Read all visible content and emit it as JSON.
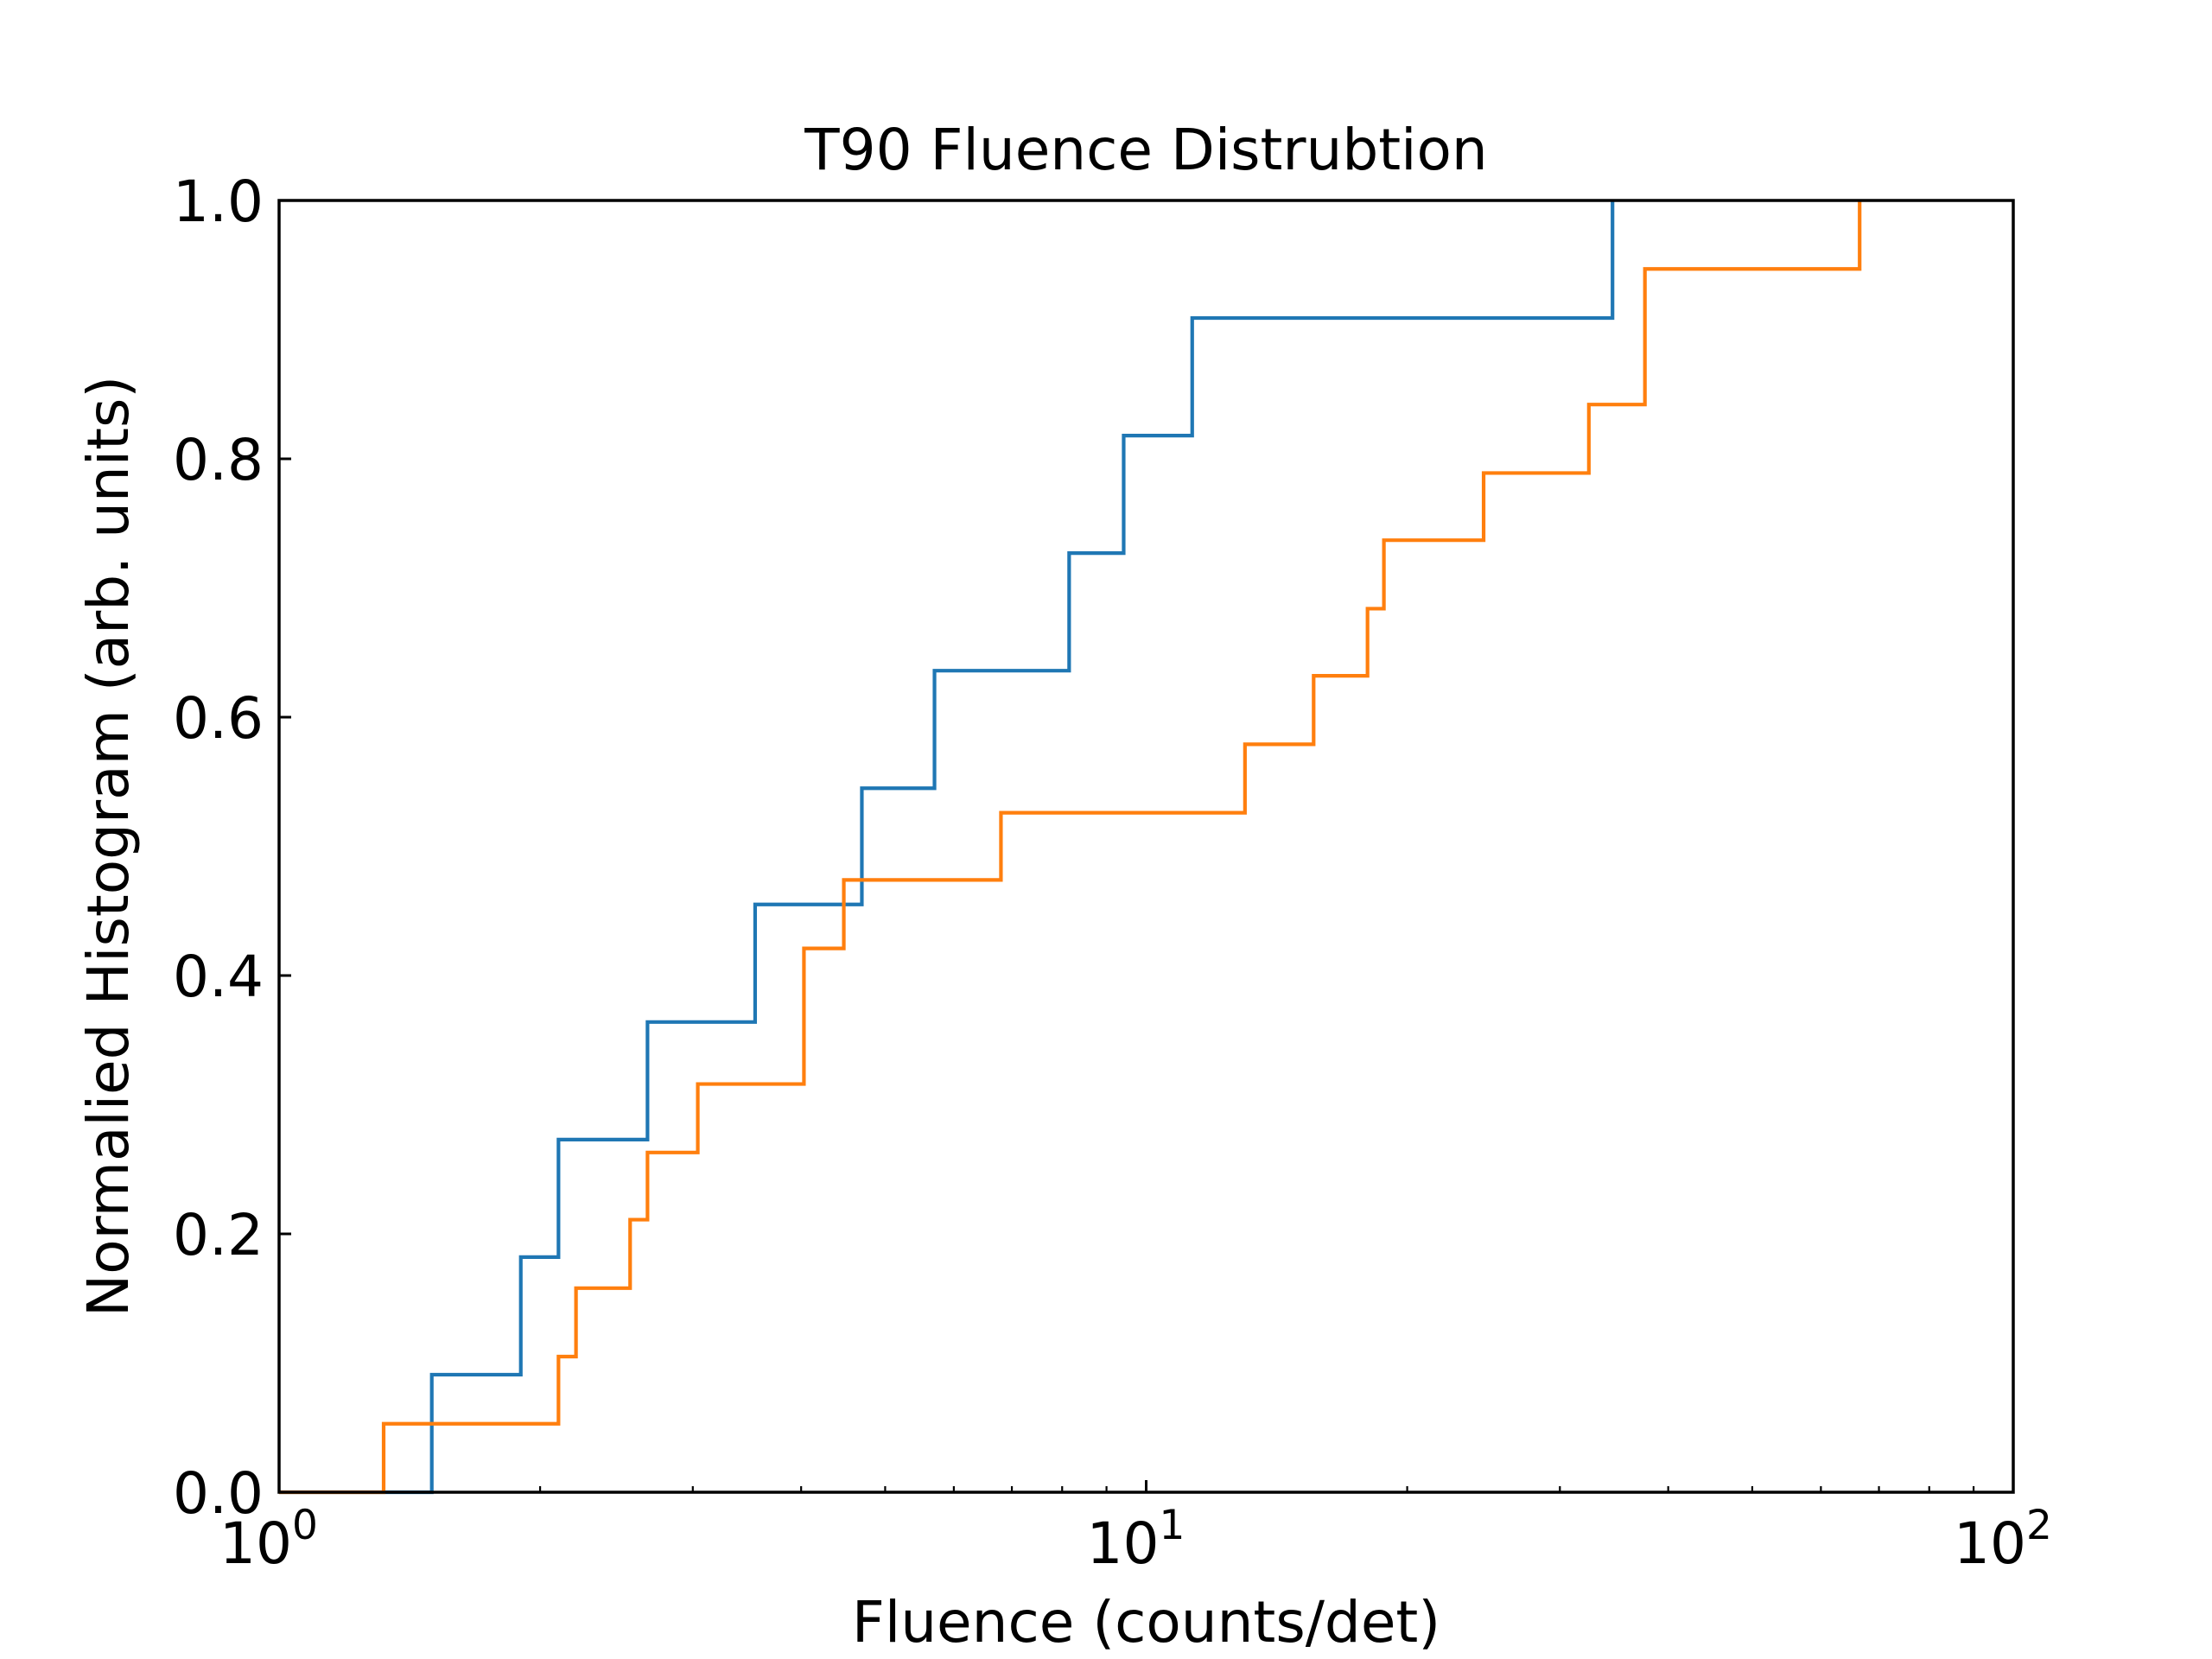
{
  "chart_data": {
    "type": "line",
    "subtype": "step-cdf",
    "title": "T90 Fluence Distrubtion",
    "xlabel": "Fluence (counts/det)",
    "ylabel": "Normalied Histogram (arb. units)",
    "xscale": "log",
    "xlim": [
      1,
      100
    ],
    "ylim": [
      0.0,
      1.0
    ],
    "grid": false,
    "legend": "none",
    "x_ticks": [
      {
        "value": 1,
        "base": "10",
        "exp": "0"
      },
      {
        "value": 10,
        "base": "10",
        "exp": "1"
      },
      {
        "value": 100,
        "base": "10",
        "exp": "2"
      }
    ],
    "y_ticks": [
      {
        "value": 0.0,
        "label": "0.0"
      },
      {
        "value": 0.2,
        "label": "0.2"
      },
      {
        "value": 0.4,
        "label": "0.4"
      },
      {
        "value": 0.6,
        "label": "0.6"
      },
      {
        "value": 0.8,
        "label": "0.8"
      },
      {
        "value": 1.0,
        "label": "1.0"
      }
    ],
    "series": [
      {
        "color": "#1f77b4",
        "x": [
          1.5,
          1.9,
          2.1,
          2.66,
          3.54,
          4.7,
          5.7,
          8.15,
          9.42,
          11.3,
          34.5
        ],
        "y": [
          0.091,
          0.182,
          0.273,
          0.364,
          0.455,
          0.545,
          0.636,
          0.727,
          0.818,
          0.909,
          1.0
        ]
      },
      {
        "color": "#ff7f0e",
        "x": [
          1.32,
          2.1,
          2.2,
          2.54,
          2.66,
          3.04,
          4.03,
          4.48,
          6.8,
          13.0,
          15.6,
          18.0,
          18.8,
          24.5,
          32.4,
          37.6,
          66.5
        ],
        "y": [
          0.053,
          0.105,
          0.158,
          0.211,
          0.263,
          0.316,
          0.421,
          0.474,
          0.526,
          0.579,
          0.632,
          0.684,
          0.737,
          0.789,
          0.842,
          0.947,
          1.0
        ]
      }
    ]
  }
}
